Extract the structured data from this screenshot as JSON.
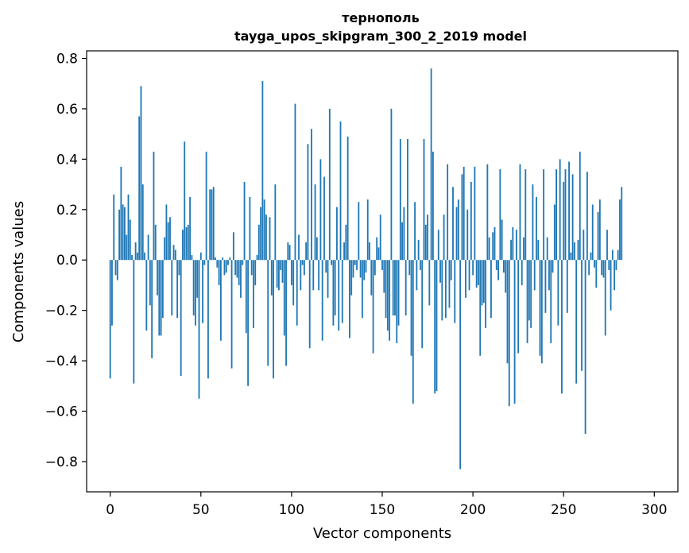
{
  "chart_data": {
    "type": "bar",
    "title": "тернополь",
    "subtitle": "tayga_upos_skipgram_300_2_2019 model",
    "xlabel": "Vector components",
    "ylabel": "Components values",
    "xlim": [
      -13,
      313
    ],
    "ylim": [
      -0.92,
      0.83
    ],
    "xticks": [
      0,
      50,
      100,
      150,
      200,
      250,
      300
    ],
    "yticks": [
      -0.8,
      -0.6,
      -0.4,
      -0.2,
      0.0,
      0.2,
      0.4,
      0.6,
      0.8
    ],
    "ytick_labels": [
      "−0.8",
      "−0.6",
      "−0.4",
      "−0.2",
      "0.0",
      "0.2",
      "0.4",
      "0.6",
      "0.8"
    ],
    "xtick_labels": [
      "0",
      "50",
      "100",
      "150",
      "200",
      "250",
      "300"
    ],
    "color": "#1f77b4",
    "values": [
      -0.47,
      -0.26,
      0.26,
      -0.06,
      -0.08,
      0.2,
      0.37,
      0.22,
      0.21,
      0.1,
      0.26,
      0.16,
      0.02,
      -0.49,
      0.07,
      0.03,
      0.57,
      0.69,
      0.3,
      0.03,
      -0.28,
      0.1,
      -0.18,
      -0.39,
      0.43,
      0.14,
      -0.14,
      -0.3,
      -0.3,
      -0.23,
      0.09,
      0.22,
      0.15,
      0.17,
      -0.22,
      0.06,
      0.04,
      -0.23,
      -0.06,
      -0.46,
      0.12,
      0.47,
      0.13,
      0.14,
      0.25,
      0.02,
      -0.22,
      -0.26,
      -0.15,
      -0.55,
      0.03,
      -0.25,
      -0.02,
      0.43,
      -0.47,
      0.28,
      0.28,
      0.29,
      0.01,
      -0.03,
      -0.1,
      -0.32,
      0.01,
      -0.06,
      -0.05,
      -0.02,
      0.01,
      -0.43,
      0.11,
      -0.06,
      -0.07,
      -0.1,
      -0.15,
      -0.02,
      0.31,
      -0.29,
      -0.5,
      0.25,
      -0.06,
      -0.27,
      -0.1,
      0.02,
      0.14,
      0.21,
      0.71,
      0.24,
      0.18,
      -0.42,
      0.17,
      -0.14,
      -0.47,
      0.3,
      -0.11,
      -0.12,
      -0.04,
      -0.09,
      -0.3,
      -0.42,
      0.07,
      0.06,
      -0.1,
      -0.18,
      0.62,
      -0.26,
      0.1,
      -0.12,
      -0.02,
      -0.06,
      0.07,
      0.46,
      -0.35,
      0.52,
      -0.12,
      0.3,
      0.09,
      -0.12,
      0.4,
      -0.32,
      0.33,
      -0.05,
      -0.15,
      0.6,
      -0.02,
      -0.26,
      -0.22,
      0.21,
      -0.28,
      0.55,
      -0.25,
      0.07,
      0.14,
      0.49,
      -0.31,
      -0.14,
      -0.07,
      -0.02,
      -0.04,
      0.23,
      -0.07,
      -0.23,
      -0.08,
      -0.05,
      0.24,
      0.07,
      -0.14,
      -0.37,
      -0.06,
      0.09,
      0.05,
      0.18,
      -0.04,
      -0.13,
      -0.23,
      -0.28,
      -0.32,
      0.6,
      -0.22,
      -0.22,
      -0.33,
      -0.26,
      0.48,
      0.15,
      0.21,
      -0.22,
      0.48,
      -0.06,
      -0.38,
      -0.57,
      0.23,
      -0.12,
      0.08,
      -0.04,
      -0.35,
      0.48,
      0.14,
      0.18,
      -0.18,
      0.76,
      0.43,
      -0.53,
      -0.52,
      0.12,
      -0.09,
      -0.24,
      0.18,
      -0.23,
      0.38,
      -0.19,
      -0.08,
      0.29,
      -0.25,
      0.21,
      0.24,
      -0.83,
      0.34,
      0.37,
      -0.15,
      0.2,
      -0.12,
      0.31,
      -0.06,
      0.37,
      -0.11,
      -0.1,
      -0.38,
      -0.18,
      -0.17,
      -0.27,
      0.38,
      0.09,
      -0.23,
      0.11,
      0.13,
      -0.04,
      -0.08,
      0.36,
      0.16,
      -0.05,
      -0.13,
      -0.41,
      -0.58,
      0.08,
      0.13,
      -0.57,
      0.12,
      -0.37,
      0.38,
      -0.1,
      0.09,
      0.36,
      -0.33,
      -0.24,
      -0.27,
      0.3,
      -0.12,
      0.25,
      0.08,
      -0.38,
      -0.41,
      0.36,
      -0.21,
      0.09,
      -0.12,
      -0.33,
      -0.05,
      0.22,
      0.36,
      -0.26,
      0.4,
      -0.53,
      0.31,
      0.36,
      -0.21,
      0.39,
      0.03,
      0.34,
      0.07,
      -0.49,
      0.08,
      0.43,
      -0.44,
      0.12,
      -0.69,
      0.35,
      -0.06,
      0.03,
      0.22,
      -0.03,
      -0.11,
      0.19,
      0.24,
      -0.06,
      -0.07,
      -0.3,
      0.12,
      -0.04,
      -0.2,
      0.04,
      -0.12,
      -0.04,
      0.04,
      0.24,
      0.29
    ],
    "grid": false,
    "legend": "none"
  }
}
